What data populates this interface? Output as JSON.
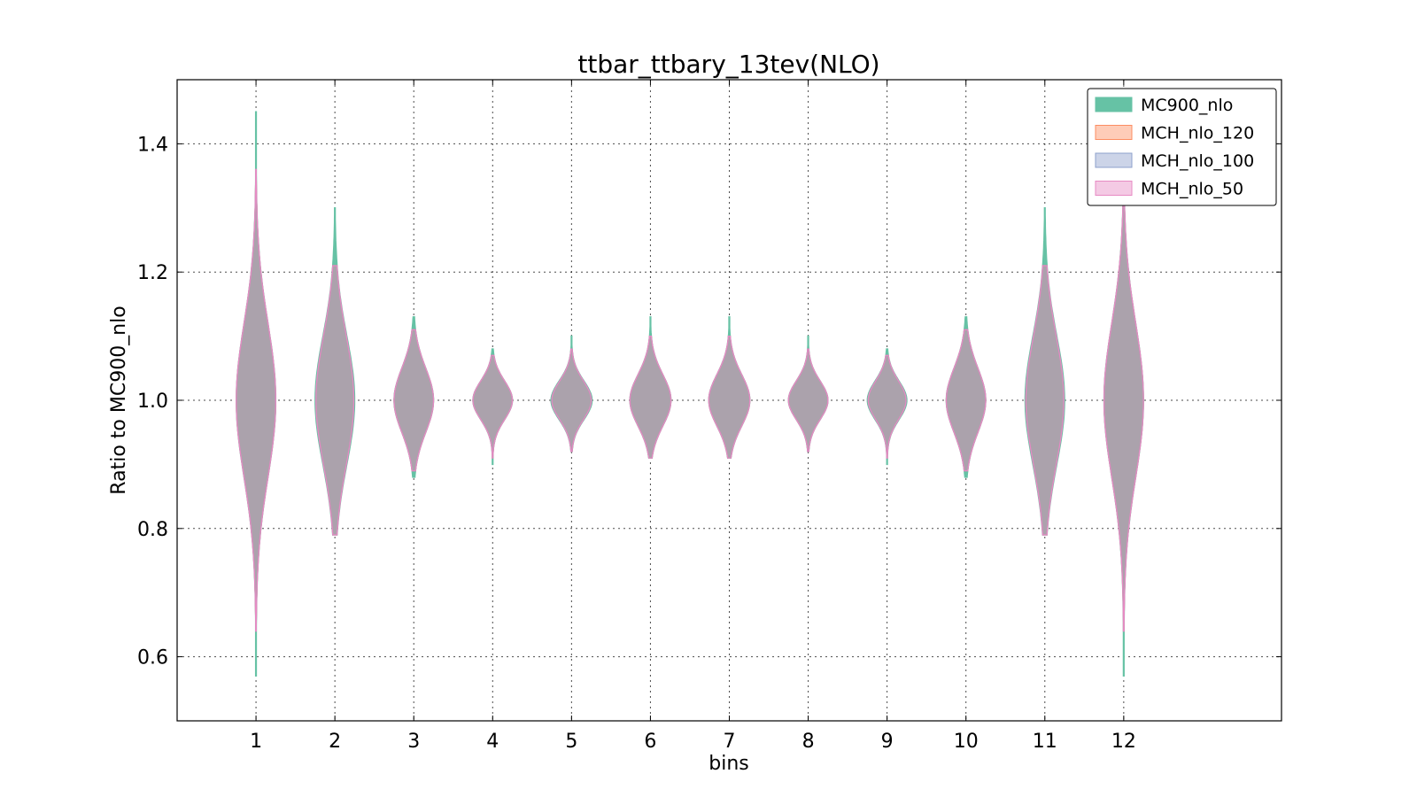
{
  "chart_data": {
    "type": "violin",
    "title": "ttbar_ttbary_13tev(NLO)",
    "xlabel": "bins",
    "ylabel": "Ratio to MC900_nlo",
    "xlim": [
      0,
      14
    ],
    "ylim": [
      0.5,
      1.5
    ],
    "yticks": [
      0.6,
      0.8,
      1.0,
      1.2,
      1.4
    ],
    "ytick_labels": [
      "0.6",
      "0.8",
      "1.0",
      "1.2",
      "1.4"
    ],
    "categories": [
      "1",
      "2",
      "3",
      "4",
      "5",
      "6",
      "7",
      "8",
      "9",
      "10",
      "11",
      "12"
    ],
    "grid": true,
    "legend_position": "top-right",
    "series": [
      {
        "name": "MC900_nlo",
        "color": "#66c2a5",
        "min": [
          0.57,
          0.79,
          0.88,
          0.9,
          0.92,
          0.91,
          0.91,
          0.92,
          0.9,
          0.88,
          0.79,
          0.57
        ],
        "max": [
          1.45,
          1.3,
          1.13,
          1.08,
          1.1,
          1.13,
          1.13,
          1.1,
          1.08,
          1.13,
          1.3,
          1.32
        ],
        "half_width": [
          0.25,
          0.25,
          0.25,
          0.25,
          0.26,
          0.26,
          0.26,
          0.25,
          0.25,
          0.25,
          0.25,
          0.25
        ],
        "spread": [
          0.12,
          0.1,
          0.05,
          0.03,
          0.03,
          0.04,
          0.04,
          0.03,
          0.03,
          0.05,
          0.1,
          0.12
        ]
      },
      {
        "name": "MCH_nlo_120",
        "color": "#fc8d62",
        "min": [
          0.64,
          0.79,
          0.89,
          0.91,
          0.92,
          0.91,
          0.91,
          0.92,
          0.91,
          0.89,
          0.79,
          0.64
        ],
        "max": [
          1.36,
          1.21,
          1.11,
          1.07,
          1.08,
          1.1,
          1.1,
          1.08,
          1.07,
          1.11,
          1.21,
          1.32
        ],
        "half_width": [
          0.25,
          0.24,
          0.25,
          0.25,
          0.25,
          0.26,
          0.26,
          0.25,
          0.24,
          0.25,
          0.24,
          0.25
        ],
        "spread": [
          0.12,
          0.1,
          0.05,
          0.03,
          0.03,
          0.04,
          0.04,
          0.03,
          0.03,
          0.05,
          0.1,
          0.12
        ]
      },
      {
        "name": "MCH_nlo_100",
        "color": "#8da0cb",
        "min": [
          0.64,
          0.79,
          0.89,
          0.91,
          0.92,
          0.91,
          0.91,
          0.92,
          0.91,
          0.89,
          0.79,
          0.64
        ],
        "max": [
          1.36,
          1.21,
          1.11,
          1.07,
          1.08,
          1.1,
          1.1,
          1.08,
          1.07,
          1.11,
          1.21,
          1.32
        ],
        "half_width": [
          0.25,
          0.24,
          0.25,
          0.25,
          0.25,
          0.26,
          0.26,
          0.25,
          0.24,
          0.25,
          0.24,
          0.25
        ],
        "spread": [
          0.12,
          0.1,
          0.05,
          0.03,
          0.03,
          0.04,
          0.04,
          0.03,
          0.03,
          0.05,
          0.1,
          0.12
        ]
      },
      {
        "name": "MCH_nlo_50",
        "color": "#e78ac3",
        "min": [
          0.64,
          0.79,
          0.89,
          0.91,
          0.92,
          0.91,
          0.91,
          0.92,
          0.91,
          0.89,
          0.79,
          0.64
        ],
        "max": [
          1.36,
          1.21,
          1.11,
          1.07,
          1.08,
          1.1,
          1.1,
          1.08,
          1.07,
          1.11,
          1.21,
          1.32
        ],
        "half_width": [
          0.25,
          0.24,
          0.25,
          0.25,
          0.25,
          0.26,
          0.26,
          0.25,
          0.24,
          0.25,
          0.24,
          0.25
        ],
        "spread": [
          0.12,
          0.1,
          0.05,
          0.03,
          0.03,
          0.04,
          0.04,
          0.03,
          0.03,
          0.05,
          0.1,
          0.12
        ]
      }
    ]
  }
}
